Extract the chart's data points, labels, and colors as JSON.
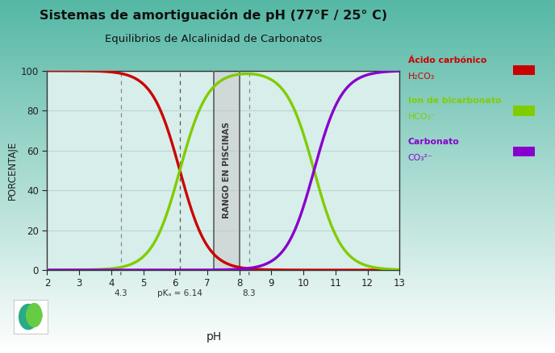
{
  "title1": "Sistemas de amortiguación de pH (77°F / 25° C)",
  "title2": "Equilibrios de Alcalinidad de Carbonatos",
  "xlabel": "pH",
  "ylabel": "PORCENTAJE",
  "xlim": [
    2,
    13
  ],
  "ylim": [
    0,
    100
  ],
  "xticks": [
    2,
    3,
    4,
    5,
    6,
    7,
    8,
    9,
    10,
    11,
    12,
    13
  ],
  "yticks": [
    0,
    20,
    40,
    60,
    80,
    100
  ],
  "pka1": 6.14,
  "pka2": 10.33,
  "vline1": 4.3,
  "vline2": 8.3,
  "pool_range": [
    7.2,
    8.0
  ],
  "curve1_color": "#cc0000",
  "curve2_color": "#80cc00",
  "curve3_color": "#8800cc",
  "plot_bg_color": "#d8eeea",
  "grid_color": "#b8d8d0",
  "legend_title1": "Ácido carbónico",
  "legend_formula1": "H₂CO₃",
  "legend_title2": "Ion de bicarbonato",
  "legend_formula2": "HCO₃⁻",
  "legend_title3": "Carbonato",
  "legend_formula3": "CO₃²⁻",
  "pool_label": "RANGO EN PISCINAS",
  "pool_fill_color": "#c8c8c8",
  "pool_fill_alpha": 0.55,
  "vline_pka_color": "#555555",
  "vline_dashed_color": "#888888",
  "annotation_pka": "pKₐ = 6.14",
  "annotation_43": "4.3",
  "annotation_83": "8.3",
  "bg_top": "#ffffff",
  "bg_bottom": "#55b8a5"
}
